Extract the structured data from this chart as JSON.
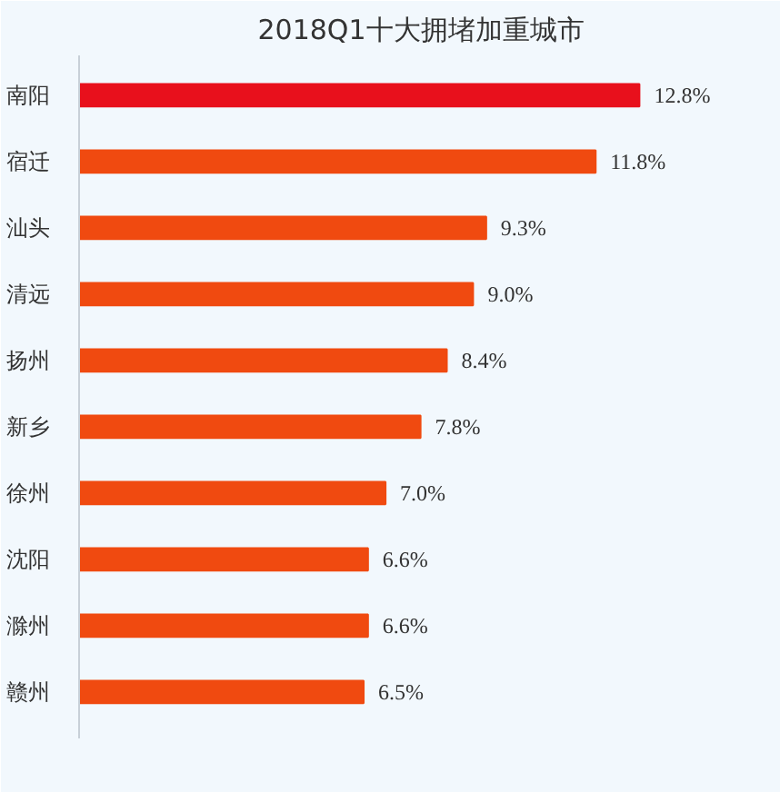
{
  "chart_data": {
    "type": "bar",
    "orientation": "horizontal",
    "title": "2018Q1十大拥堵加重城市",
    "categories": [
      "南阳",
      "宿迁",
      "汕头",
      "清远",
      "扬州",
      "新乡",
      "徐州",
      "沈阳",
      "滁州",
      "赣州"
    ],
    "values": [
      12.8,
      11.8,
      9.3,
      9.0,
      8.4,
      7.8,
      7.0,
      6.6,
      6.6,
      6.5
    ],
    "value_labels": [
      "12.8%",
      "11.8%",
      "9.3%",
      "9.0%",
      "8.4%",
      "7.8%",
      "7.0%",
      "6.6%",
      "6.6%",
      "6.5%"
    ],
    "colors": [
      "#e8101c",
      "#f04a10",
      "#f04a10",
      "#f04a10",
      "#f04a10",
      "#f04a10",
      "#f04a10",
      "#f04a10",
      "#f04a10",
      "#f04a10"
    ],
    "grid": false
  }
}
